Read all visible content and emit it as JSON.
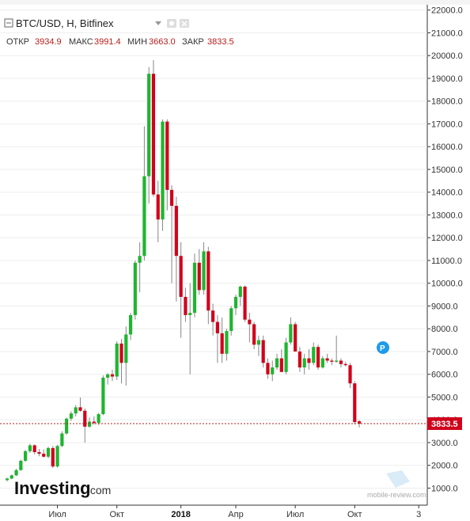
{
  "header": {
    "title": "BTC/USD, H, Bitfinex",
    "open_label": "ОТКР",
    "open_value": "3934.9",
    "high_label": "МАКС",
    "high_value": "3991.4",
    "low_label": "МИН",
    "low_value": "3663.0",
    "close_label": "ЗАКР",
    "close_value": "3833.5"
  },
  "last_price_label": "3833.5",
  "marker_label": "P",
  "logo": {
    "name": "Investing",
    "suffix": ".com"
  },
  "watermark": "mobile-review.com",
  "colors": {
    "up": "#1fb530",
    "down": "#d0021b",
    "wick": "#888888",
    "price_line": "#b71c1c"
  },
  "chart_data": {
    "type": "candlestick",
    "title": "BTC/USD, H, Bitfinex",
    "ylim": [
      0,
      22000
    ],
    "y_ticks": [
      "1000.0",
      "2000.0",
      "3000.0",
      "4000.0",
      "5000.0",
      "6000.0",
      "7000.0",
      "8000.0",
      "9000.0",
      "10000.0",
      "11000.0",
      "12000.0",
      "13000.0",
      "14000.0",
      "15000.0",
      "16000.0",
      "17000.0",
      "18000.0",
      "19000.0",
      "20000.0",
      "21000.0",
      "22000.0"
    ],
    "x_ticks": [
      {
        "label": "Июл",
        "index": 11,
        "bold": false
      },
      {
        "label": "Окт",
        "index": 24,
        "bold": false
      },
      {
        "label": "2018",
        "index": 38,
        "bold": true
      },
      {
        "label": "Апр",
        "index": 50,
        "bold": false
      },
      {
        "label": "Июл",
        "index": 63,
        "bold": false
      },
      {
        "label": "Окт",
        "index": 76,
        "bold": false
      },
      {
        "label": "3",
        "index": 90,
        "bold": false
      }
    ],
    "candles": [
      {
        "o": 1350,
        "h": 1460,
        "l": 1300,
        "c": 1420
      },
      {
        "o": 1420,
        "h": 1600,
        "l": 1390,
        "c": 1560
      },
      {
        "o": 1560,
        "h": 1850,
        "l": 1530,
        "c": 1790
      },
      {
        "o": 1790,
        "h": 2250,
        "l": 1760,
        "c": 2200
      },
      {
        "o": 2200,
        "h": 2680,
        "l": 2150,
        "c": 2620
      },
      {
        "o": 2620,
        "h": 2950,
        "l": 2550,
        "c": 2880
      },
      {
        "o": 2880,
        "h": 2920,
        "l": 2480,
        "c": 2580
      },
      {
        "o": 2580,
        "h": 2720,
        "l": 2400,
        "c": 2510
      },
      {
        "o": 2510,
        "h": 2700,
        "l": 2350,
        "c": 2380
      },
      {
        "o": 2380,
        "h": 2820,
        "l": 2310,
        "c": 2760
      },
      {
        "o": 2760,
        "h": 2850,
        "l": 1880,
        "c": 1950
      },
      {
        "o": 1950,
        "h": 2900,
        "l": 1900,
        "c": 2850
      },
      {
        "o": 2850,
        "h": 3500,
        "l": 2800,
        "c": 3400
      },
      {
        "o": 3400,
        "h": 4100,
        "l": 3350,
        "c": 4050
      },
      {
        "o": 4050,
        "h": 4380,
        "l": 3950,
        "c": 4280
      },
      {
        "o": 4280,
        "h": 4650,
        "l": 4150,
        "c": 4550
      },
      {
        "o": 4550,
        "h": 4980,
        "l": 4350,
        "c": 4400
      },
      {
        "o": 4400,
        "h": 4500,
        "l": 3000,
        "c": 3700
      },
      {
        "o": 3700,
        "h": 4100,
        "l": 3650,
        "c": 3920
      },
      {
        "o": 3920,
        "h": 4150,
        "l": 3800,
        "c": 3860
      },
      {
        "o": 3860,
        "h": 4300,
        "l": 3780,
        "c": 4250
      },
      {
        "o": 4250,
        "h": 5950,
        "l": 4200,
        "c": 5850
      },
      {
        "o": 5850,
        "h": 6050,
        "l": 5550,
        "c": 6000
      },
      {
        "o": 6000,
        "h": 6200,
        "l": 5700,
        "c": 5900
      },
      {
        "o": 5900,
        "h": 7450,
        "l": 5750,
        "c": 7350
      },
      {
        "o": 7350,
        "h": 7550,
        "l": 5600,
        "c": 6500
      },
      {
        "o": 6500,
        "h": 8100,
        "l": 5500,
        "c": 7750
      },
      {
        "o": 7750,
        "h": 8700,
        "l": 7500,
        "c": 8600
      },
      {
        "o": 8600,
        "h": 11000,
        "l": 8400,
        "c": 10900
      },
      {
        "o": 10900,
        "h": 11800,
        "l": 9600,
        "c": 11200
      },
      {
        "o": 11200,
        "h": 16900,
        "l": 11000,
        "c": 14700
      },
      {
        "o": 14700,
        "h": 19500,
        "l": 13500,
        "c": 19200
      },
      {
        "o": 19200,
        "h": 19800,
        "l": 13800,
        "c": 13900
      },
      {
        "o": 13900,
        "h": 14500,
        "l": 11800,
        "c": 12800
      },
      {
        "o": 12800,
        "h": 17200,
        "l": 12300,
        "c": 17100
      },
      {
        "o": 17100,
        "h": 17200,
        "l": 13200,
        "c": 14100
      },
      {
        "o": 14100,
        "h": 14300,
        "l": 10000,
        "c": 13400
      },
      {
        "o": 13400,
        "h": 13800,
        "l": 9200,
        "c": 11200
      },
      {
        "o": 11200,
        "h": 11800,
        "l": 7600,
        "c": 9400
      },
      {
        "o": 9400,
        "h": 9800,
        "l": 8300,
        "c": 8600
      },
      {
        "o": 8600,
        "h": 10000,
        "l": 6000,
        "c": 8700
      },
      {
        "o": 8700,
        "h": 11300,
        "l": 8500,
        "c": 10900
      },
      {
        "o": 10900,
        "h": 11500,
        "l": 9500,
        "c": 9700
      },
      {
        "o": 9700,
        "h": 11800,
        "l": 9500,
        "c": 11400
      },
      {
        "o": 11400,
        "h": 11600,
        "l": 8200,
        "c": 8800
      },
      {
        "o": 8800,
        "h": 9100,
        "l": 7700,
        "c": 8300
      },
      {
        "o": 8300,
        "h": 8600,
        "l": 6500,
        "c": 7800
      },
      {
        "o": 7800,
        "h": 8500,
        "l": 6500,
        "c": 6900
      },
      {
        "o": 6900,
        "h": 8000,
        "l": 6600,
        "c": 7900
      },
      {
        "o": 7900,
        "h": 9000,
        "l": 7700,
        "c": 8900
      },
      {
        "o": 8900,
        "h": 9500,
        "l": 8600,
        "c": 9400
      },
      {
        "o": 9400,
        "h": 9900,
        "l": 9000,
        "c": 9850
      },
      {
        "o": 9850,
        "h": 9900,
        "l": 8300,
        "c": 8400
      },
      {
        "o": 8400,
        "h": 8700,
        "l": 7400,
        "c": 8200
      },
      {
        "o": 8200,
        "h": 8300,
        "l": 7100,
        "c": 7300
      },
      {
        "o": 7300,
        "h": 7700,
        "l": 6800,
        "c": 7500
      },
      {
        "o": 7500,
        "h": 7700,
        "l": 6300,
        "c": 6500
      },
      {
        "o": 6500,
        "h": 6700,
        "l": 5800,
        "c": 6000
      },
      {
        "o": 6000,
        "h": 6600,
        "l": 5700,
        "c": 6300
      },
      {
        "o": 6300,
        "h": 6900,
        "l": 6200,
        "c": 6700
      },
      {
        "o": 6700,
        "h": 7100,
        "l": 6300,
        "c": 6100
      },
      {
        "o": 6100,
        "h": 7600,
        "l": 6000,
        "c": 7400
      },
      {
        "o": 7400,
        "h": 8500,
        "l": 7300,
        "c": 8200
      },
      {
        "o": 8200,
        "h": 8300,
        "l": 7100,
        "c": 7000
      },
      {
        "o": 7000,
        "h": 7200,
        "l": 6100,
        "c": 6300
      },
      {
        "o": 6300,
        "h": 6900,
        "l": 6000,
        "c": 6700
      },
      {
        "o": 6700,
        "h": 7100,
        "l": 6200,
        "c": 6500
      },
      {
        "o": 6500,
        "h": 7400,
        "l": 6400,
        "c": 7200
      },
      {
        "o": 7200,
        "h": 7300,
        "l": 6200,
        "c": 6300
      },
      {
        "o": 6300,
        "h": 6800,
        "l": 6250,
        "c": 6700
      },
      {
        "o": 6700,
        "h": 6900,
        "l": 6500,
        "c": 6600
      },
      {
        "o": 6600,
        "h": 6700,
        "l": 6400,
        "c": 6550
      },
      {
        "o": 6550,
        "h": 7700,
        "l": 6500,
        "c": 6600
      },
      {
        "o": 6600,
        "h": 6700,
        "l": 6300,
        "c": 6450
      },
      {
        "o": 6450,
        "h": 6550,
        "l": 6350,
        "c": 6400
      },
      {
        "o": 6400,
        "h": 6500,
        "l": 5400,
        "c": 5600
      },
      {
        "o": 5600,
        "h": 5700,
        "l": 3800,
        "c": 3900
      },
      {
        "o": 3934.9,
        "h": 3991.4,
        "l": 3663.0,
        "c": 3833.5
      }
    ]
  }
}
